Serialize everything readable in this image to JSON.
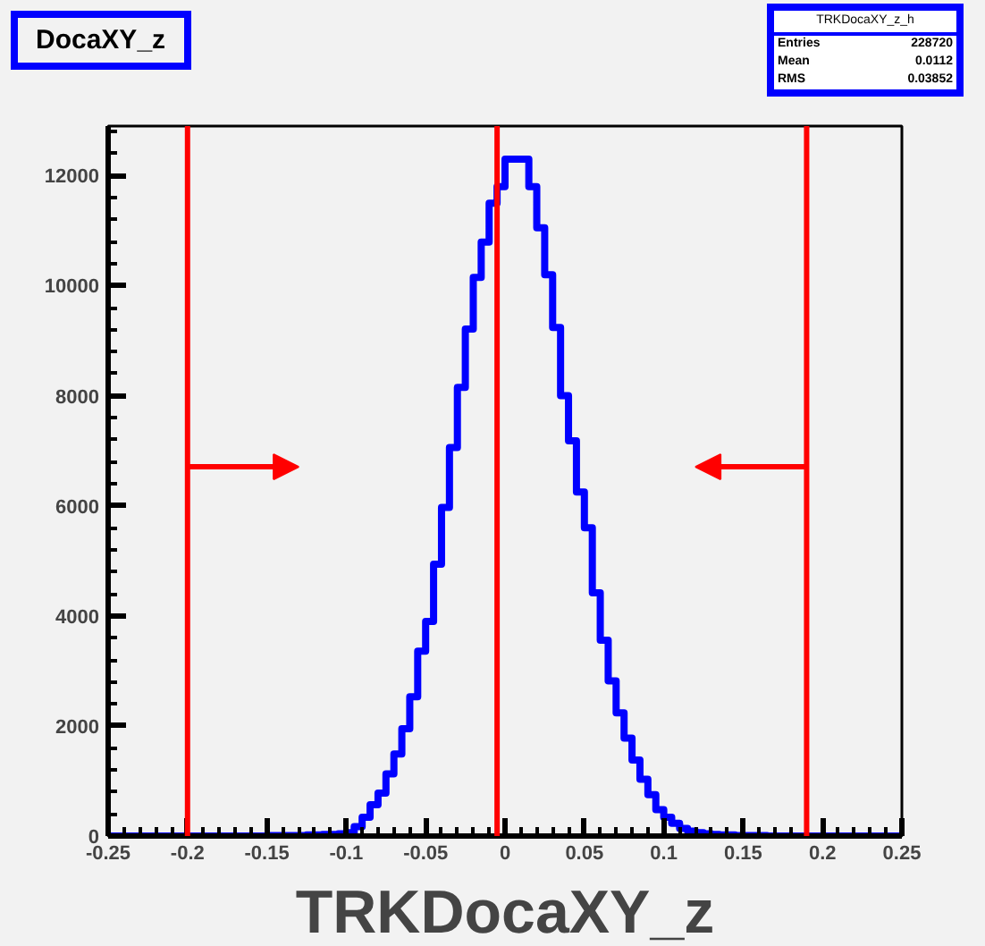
{
  "chart_data": {
    "type": "histogram",
    "title": "DocaXY_z",
    "xlabel": "TRKDocaXY_z",
    "annotations": [
      "TRKDocaXY_z_h",
      "Entries   228720",
      "Mean   0.0112",
      "RMS   0.03852"
    ],
    "bins": [
      -0.25,
      -0.245,
      -0.24,
      -0.235,
      -0.23,
      -0.225,
      -0.22,
      -0.215,
      -0.21,
      -0.205,
      -0.2,
      -0.195,
      -0.19,
      -0.185,
      -0.18,
      -0.175,
      -0.17,
      -0.165,
      -0.16,
      -0.155,
      -0.15,
      -0.145,
      -0.14,
      -0.135,
      -0.13,
      -0.125,
      -0.12,
      -0.115,
      -0.11,
      -0.105,
      -0.1,
      -0.095,
      -0.09,
      -0.085,
      -0.08,
      -0.075,
      -0.07,
      -0.065,
      -0.06,
      -0.055,
      -0.05,
      -0.045,
      -0.04,
      -0.035,
      -0.03,
      -0.025,
      -0.02,
      -0.015,
      -0.01,
      -0.005,
      0,
      0.005,
      0.01,
      0.015,
      0.02,
      0.025,
      0.03,
      0.035,
      0.04,
      0.045,
      0.05,
      0.055,
      0.06,
      0.065,
      0.07,
      0.075,
      0.08,
      0.085,
      0.09,
      0.095,
      0.1,
      0.105,
      0.11,
      0.115,
      0.12,
      0.125,
      0.13,
      0.135,
      0.14,
      0.145,
      0.15,
      0.155,
      0.16,
      0.165,
      0.17,
      0.175,
      0.18,
      0.185,
      0.19,
      0.195,
      0.2,
      0.205,
      0.21,
      0.215,
      0.22,
      0.225,
      0.23,
      0.235,
      0.24,
      0.245,
      0.25
    ],
    "values": [
      0,
      0,
      0,
      0,
      0,
      0,
      0,
      0,
      0,
      0,
      0,
      0,
      0,
      0,
      0,
      0,
      0,
      0,
      0,
      0,
      10,
      10,
      10,
      10,
      10,
      20,
      20,
      30,
      30,
      40,
      60,
      170,
      340,
      570,
      780,
      1130,
      1490,
      1950,
      2530,
      3360,
      3900,
      4940,
      5970,
      7060,
      8150,
      9210,
      10150,
      10790,
      11500,
      11800,
      12300,
      12300,
      12300,
      11800,
      11050,
      10200,
      9240,
      8000,
      7180,
      6250,
      5600,
      4420,
      3560,
      2820,
      2240,
      1780,
      1380,
      1030,
      750,
      480,
      340,
      230,
      140,
      90,
      60,
      40,
      30,
      20,
      20,
      10,
      10,
      10,
      10,
      0,
      0,
      0,
      0,
      0,
      0,
      0,
      0,
      0,
      0,
      0,
      0,
      0,
      0,
      0,
      0,
      0
    ],
    "color": "#0000ff",
    "xlim": [
      -0.25,
      0.25
    ],
    "ylim": [
      0,
      12900
    ],
    "xticks": [
      -0.25,
      -0.2,
      -0.15,
      -0.1,
      -0.05,
      0,
      0.05,
      0.1,
      0.15,
      0.2,
      0.25
    ],
    "yticks": [
      0,
      2000,
      4000,
      6000,
      8000,
      10000,
      12000
    ],
    "ref_lines": [
      {
        "axis": "x",
        "value": -0.2,
        "color": "#ff0000"
      },
      {
        "axis": "x",
        "value": -0.005,
        "color": "#ff0000"
      },
      {
        "axis": "x",
        "value": 0.19,
        "color": "#ff0000"
      }
    ],
    "grid": false
  }
}
